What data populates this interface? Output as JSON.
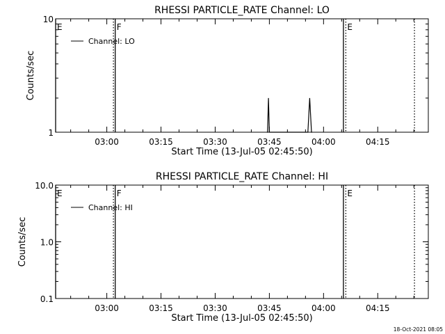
{
  "footer_timestamp": "18-Oct-2021 08:05",
  "chart_data": [
    {
      "type": "line",
      "title": "RHESSI PARTICLE_RATE Channel: LO",
      "xlabel": "Start Time (13-Jul-05 02:45:50)",
      "ylabel": "Counts/sec",
      "yscale": "log",
      "xlim": [
        "02:45:50",
        "04:29:00"
      ],
      "ylim": [
        1,
        10
      ],
      "x_ticks": [
        "03:00",
        "03:15",
        "03:30",
        "03:45",
        "04:00",
        "04:15"
      ],
      "y_ticks": [
        "1",
        "10"
      ],
      "legend": {
        "entries": [
          "Channel: LO"
        ],
        "position": "top-left"
      },
      "series": [
        {
          "name": "Channel: LO",
          "x": [
            "03:44:20",
            "03:44:30",
            "03:44:45",
            "03:45:00",
            "03:45:10",
            "03:55:30",
            "03:55:40",
            "03:56:10",
            "03:56:40",
            "03:56:50"
          ],
          "values": [
            1,
            1,
            2,
            1,
            1,
            1,
            1,
            2,
            1,
            1
          ]
        }
      ],
      "markers": [
        {
          "label": "E",
          "time": "02:45:50",
          "style": "solid"
        },
        {
          "label": "",
          "time": "03:01:50",
          "style": "dotted"
        },
        {
          "label": "F",
          "time": "03:02:20",
          "style": "solid"
        },
        {
          "label": "",
          "time": "04:05:30",
          "style": "solid"
        },
        {
          "label": "E",
          "time": "04:06:10",
          "style": "dotted"
        },
        {
          "label": "",
          "time": "04:25:10",
          "style": "dotted"
        }
      ]
    },
    {
      "type": "line",
      "title": "RHESSI PARTICLE_RATE Channel: HI",
      "xlabel": "Start Time (13-Jul-05 02:45:50)",
      "ylabel": "Counts/sec",
      "yscale": "log",
      "xlim": [
        "02:45:50",
        "04:29:00"
      ],
      "ylim": [
        0.1,
        10
      ],
      "x_ticks": [
        "03:00",
        "03:15",
        "03:30",
        "03:45",
        "04:00",
        "04:15"
      ],
      "y_ticks": [
        "0.1",
        "1.0",
        "10.0"
      ],
      "legend": {
        "entries": [
          "Channel: HI"
        ],
        "position": "top-left"
      },
      "series": [
        {
          "name": "Channel: HI",
          "x": [],
          "values": []
        }
      ],
      "markers": [
        {
          "label": "E",
          "time": "02:45:50",
          "style": "solid"
        },
        {
          "label": "",
          "time": "03:01:50",
          "style": "dotted"
        },
        {
          "label": "F",
          "time": "03:02:20",
          "style": "solid"
        },
        {
          "label": "",
          "time": "04:05:30",
          "style": "solid"
        },
        {
          "label": "E",
          "time": "04:06:10",
          "style": "dotted"
        },
        {
          "label": "",
          "time": "04:25:10",
          "style": "dotted"
        }
      ]
    }
  ]
}
